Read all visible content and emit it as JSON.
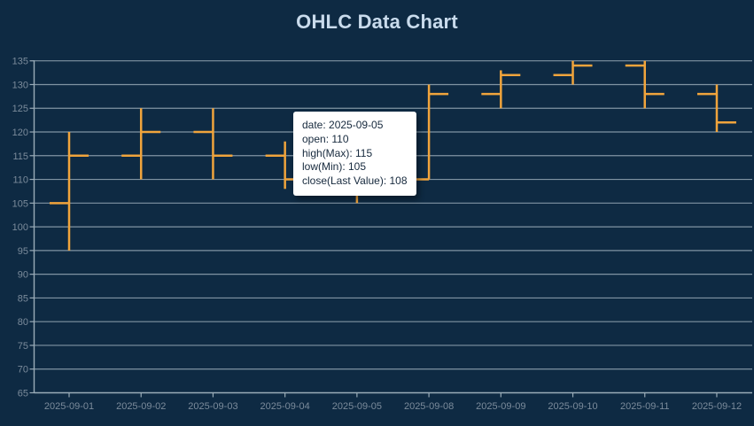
{
  "title": "OHLC Data Chart",
  "colors": {
    "background": "#0e2a43",
    "bar": "#f0a43c",
    "grid": "#8da0ae",
    "axis": "#9aacb8",
    "axis_label": "#7b8b9b",
    "title": "#c9dbec",
    "tooltip_bg": "#ffffff",
    "tooltip_text": "#16293d"
  },
  "tooltip": {
    "lines": [
      "date: 2025-09-05",
      "open: 110",
      "high(Max): 115",
      "low(Min): 105",
      "close(Last Value): 108"
    ]
  },
  "chart_data": {
    "type": "ohlc",
    "title": "OHLC Data Chart",
    "categories": [
      "2025-09-01",
      "2025-09-02",
      "2025-09-03",
      "2025-09-04",
      "2025-09-05",
      "2025-09-08",
      "2025-09-09",
      "2025-09-10",
      "2025-09-11",
      "2025-09-12"
    ],
    "series": [
      {
        "name": "OHLC",
        "data": [
          {
            "date": "2025-09-01",
            "open": 105,
            "high": 120,
            "low": 95,
            "close": 115
          },
          {
            "date": "2025-09-02",
            "open": 115,
            "high": 125,
            "low": 110,
            "close": 120
          },
          {
            "date": "2025-09-03",
            "open": 120,
            "high": 125,
            "low": 110,
            "close": 115
          },
          {
            "date": "2025-09-04",
            "open": 115,
            "high": 118,
            "low": 108,
            "close": 110
          },
          {
            "date": "2025-09-05",
            "open": 110,
            "high": 115,
            "low": 105,
            "close": 108
          },
          {
            "date": "2025-09-08",
            "open": 110,
            "high": 130,
            "low": 110,
            "close": 128
          },
          {
            "date": "2025-09-09",
            "open": 128,
            "high": 133,
            "low": 125,
            "close": 132
          },
          {
            "date": "2025-09-10",
            "open": 132,
            "high": 135,
            "low": 130,
            "close": 134
          },
          {
            "date": "2025-09-11",
            "open": 134,
            "high": 135,
            "low": 125,
            "close": 128
          },
          {
            "date": "2025-09-12",
            "open": 128,
            "high": 130,
            "low": 120,
            "close": 122
          }
        ]
      }
    ],
    "ylim": [
      65,
      135
    ],
    "y_tick_step": 5,
    "grid": true,
    "legend": "none",
    "bar_color": "#f0a43c"
  }
}
